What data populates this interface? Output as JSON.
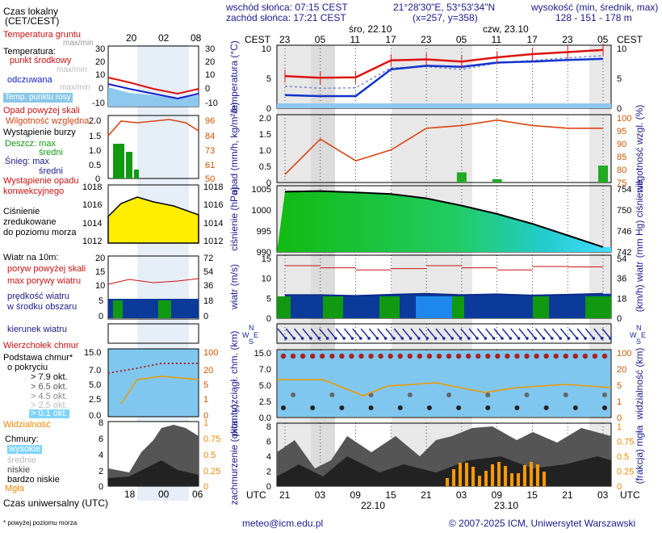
{
  "header": {
    "sunrise": "wschód słońca: 07:15 CEST",
    "sunset": "zachód słońca: 17:21 CEST",
    "coords": "21°28'30\"E, 53°53'34\"N",
    "grid": "(x=257, y=358)",
    "alt_label": "wysokość (min, średnik, max)",
    "alt_values": "128 - 151 - 178 m"
  },
  "legend": {
    "local_time": "Czas lokalny",
    "local_time_zones": "(CET/CEST)",
    "small_local_ticks": [
      "20",
      "02",
      "08"
    ],
    "soil_temp": "Temperatura gruntu",
    "soil_temp_sub": "max/min",
    "temperature": "Temperatura:",
    "mid_point": "punkt środkowy",
    "max_min": "max/min",
    "avg": "odczuwana",
    "avg_sub": "max/min",
    "dew": "Temp. punktu rosy",
    "precip_over": "Opad powyżej skali",
    "humidity": "Wilgotność względna",
    "storm": "Wystąpienie burzy",
    "rain": "Deszcz: max",
    "rain_mid": "średni",
    "snow": "Śnieg: max",
    "snow_mid": "średni",
    "precip_occurrence": "Wystąpienie opadu",
    "convective": "konwekcyjnego",
    "pressure_1": "Ciśnienie",
    "pressure_2": "zredukowane",
    "pressure_3": "do poziomu morza",
    "wind_10m": "Wiatr na 10m:",
    "gust_over": "poryw powyżej skali",
    "gust_max": "max porywy wiatru",
    "wind_speed": "prędkość wiatru",
    "wind_speed_2": "w środku obszaru",
    "wind_dir": "kierunek wiatru",
    "cloud_top": "Wierzchołek chmur",
    "cloud_base_1": "Podstawa chmur*",
    "cloud_base_2": "o pokryciu",
    "okt_1": "> 7.9 okt.",
    "okt_2": "> 6.5 okt.",
    "okt_3": "> 4.5 okt.",
    "okt_4": "> 2.5 okt.",
    "okt_5": "> 0.1 okt.",
    "visibility": "Widzialność",
    "clouds": "Chmury:",
    "cl_high": "wysokie",
    "cl_mid": "średnie",
    "cl_low": "niskie",
    "cl_vlow": "bardzo niskie",
    "fog": "Mgła",
    "utc": "Czas uniwersalny (UTC)",
    "small_utc_ticks": [
      "18",
      "00",
      "06"
    ],
    "footnote": "* powyżej poziomu morza"
  },
  "axes": {
    "cest": "CEST",
    "utc": "UTC",
    "day1": "śro, 22.10",
    "day2": "czw, 23.10",
    "date1": "22.10",
    "date2": "23.10",
    "top_ticks": [
      "23",
      "05",
      "11",
      "17",
      "23",
      "05",
      "11",
      "17",
      "23",
      "05"
    ],
    "bottom_ticks": [
      "21",
      "03",
      "09",
      "15",
      "21",
      "03",
      "09",
      "15",
      "21",
      "03"
    ],
    "temp_label": "temperatura (°C)",
    "precip_label": "opad (mm/h, kg/m²/h)",
    "humid_label": "wilgotność wzgl. (%)",
    "press_label": "ciśnienie (hPa)",
    "press_label_r": "(mm Hg) ciśnienie",
    "wind_label": "wiatr (m/s)",
    "wind_label_r": "(km/h) wiatr",
    "cloud_label": "pion. rozciągł. chm. (km)",
    "vis_label": "widzialność (km)",
    "cover_label": "zachmurzenie (oktanty)",
    "fog_label": "(frakcja) mgła",
    "compass": [
      "N",
      "W",
      "E",
      "S"
    ],
    "temp_ticks_l": [
      "10",
      "5",
      "0"
    ],
    "temp_ticks_r": [
      "10",
      "5",
      "0"
    ],
    "precip_ticks": [
      "2.0",
      "1.5",
      "1.0",
      "0.5",
      "0"
    ],
    "humid_ticks": [
      "100",
      "95",
      "90",
      "85",
      "80",
      "75"
    ],
    "press_ticks": [
      "1005",
      "1000",
      "995",
      "990"
    ],
    "press_ticks_r": [
      "754",
      "750",
      "746",
      "742"
    ],
    "wind_ticks": [
      "15",
      "10",
      "5",
      "0"
    ],
    "wind_ticks_r": [
      "54",
      "36",
      "18",
      "0"
    ],
    "cloud_ticks": [
      "15.0",
      "7.0",
      "5.0",
      "2.5",
      "0.0"
    ],
    "vis_ticks": [
      "100",
      "20",
      "5",
      "1",
      "0"
    ],
    "cover_ticks": [
      "8",
      "6",
      "4",
      "2",
      "0"
    ],
    "fog_ticks": [
      "1",
      "0.75",
      "0.5",
      "0.25",
      "0"
    ],
    "small_temp_ticks": [
      "30",
      "20",
      "10",
      "0",
      "-10"
    ],
    "small_press_ticks": [
      "1018",
      "1016",
      "1014",
      "1012"
    ],
    "small_wind_ticks": [
      "20",
      "15",
      "10",
      "5",
      "0"
    ],
    "small_wind_ticks_r": [
      "72",
      "54",
      "36",
      "18",
      "0"
    ],
    "small_humid_ticks": [
      "96",
      "84",
      "73",
      "61",
      "50"
    ]
  },
  "footer": {
    "email": "meteo@icm.edu.pl",
    "copyright": "© 2007-2025 ICM, Uniwersytet Warszawski"
  },
  "colors": {
    "temp": "#dd1111",
    "dew": "#1133cc",
    "humidity": "#dd4411",
    "pressure_fill": "#22cc22",
    "wind": "#0b2a8a",
    "gust": "#cc1111",
    "cloud_top": "#aa2222",
    "visibility": "#ee9900",
    "fog": "#ff9900"
  },
  "chart_data": [
    {
      "type": "line",
      "title": "temperatura (°C)",
      "x": [
        "21",
        "03",
        "09",
        "15",
        "21",
        "03",
        "09",
        "15",
        "21",
        "03"
      ],
      "series": [
        {
          "name": "punkt środkowy",
          "values": [
            6.1,
            5.8,
            5.9,
            9.1,
            9.3,
            8.9,
            9.7,
            10.3,
            10.7,
            11.1
          ]
        },
        {
          "name": "odczuwana",
          "values": [
            4.2,
            3.8,
            3.9,
            7.7,
            7.9,
            7.4,
            8.6,
            9.1,
            9.6,
            10.0
          ]
        },
        {
          "name": "Temp. punktu rosy",
          "values": [
            2.5,
            2.3,
            2.3,
            7.4,
            8.1,
            7.9,
            8.7,
            8.9,
            9.2,
            9.4
          ]
        }
      ],
      "ylim": [
        0,
        12
      ]
    },
    {
      "type": "line",
      "title": "wilgotność wzgl. (%)",
      "x": [
        "21",
        "03",
        "09",
        "15",
        "21",
        "03",
        "09",
        "15",
        "21",
        "03"
      ],
      "series": [
        {
          "name": "Wilgotność względna",
          "values": [
            78,
            91,
            83,
            87,
            95,
            96,
            98,
            96,
            95,
            95
          ]
        },
        {
          "name": "Deszcz: max",
          "values": [
            0,
            0,
            0,
            0,
            0,
            0.3,
            0.1,
            0,
            0,
            0.5
          ]
        }
      ],
      "ylim": [
        75,
        100
      ]
    },
    {
      "type": "area",
      "title": "ciśnienie (hPa)",
      "x": [
        "21",
        "03",
        "09",
        "15",
        "21",
        "03",
        "09",
        "15",
        "21",
        "03"
      ],
      "values": [
        1006.2,
        1006.4,
        1006.0,
        1005.5,
        1004.2,
        1002.0,
        999.5,
        996.5,
        993.0,
        989.5
      ],
      "ylim": [
        988,
        1008
      ]
    },
    {
      "type": "line",
      "title": "wiatr (m/s)",
      "x": [
        "21",
        "03",
        "09",
        "15",
        "21",
        "03",
        "09",
        "15",
        "21",
        "03"
      ],
      "series": [
        {
          "name": "prędkość wiatru",
          "values": [
            5.5,
            5.5,
            5.3,
            5.6,
            5.8,
            5.5,
            5.7,
            5.4,
            5.6,
            5.8
          ]
        },
        {
          "name": "max porywy wiatru",
          "values": [
            12.5,
            12.0,
            11.5,
            11.8,
            12.5,
            12.0,
            11.5,
            12.3,
            12.2,
            13.0
          ]
        }
      ],
      "ylim": [
        0,
        15
      ]
    }
  ]
}
